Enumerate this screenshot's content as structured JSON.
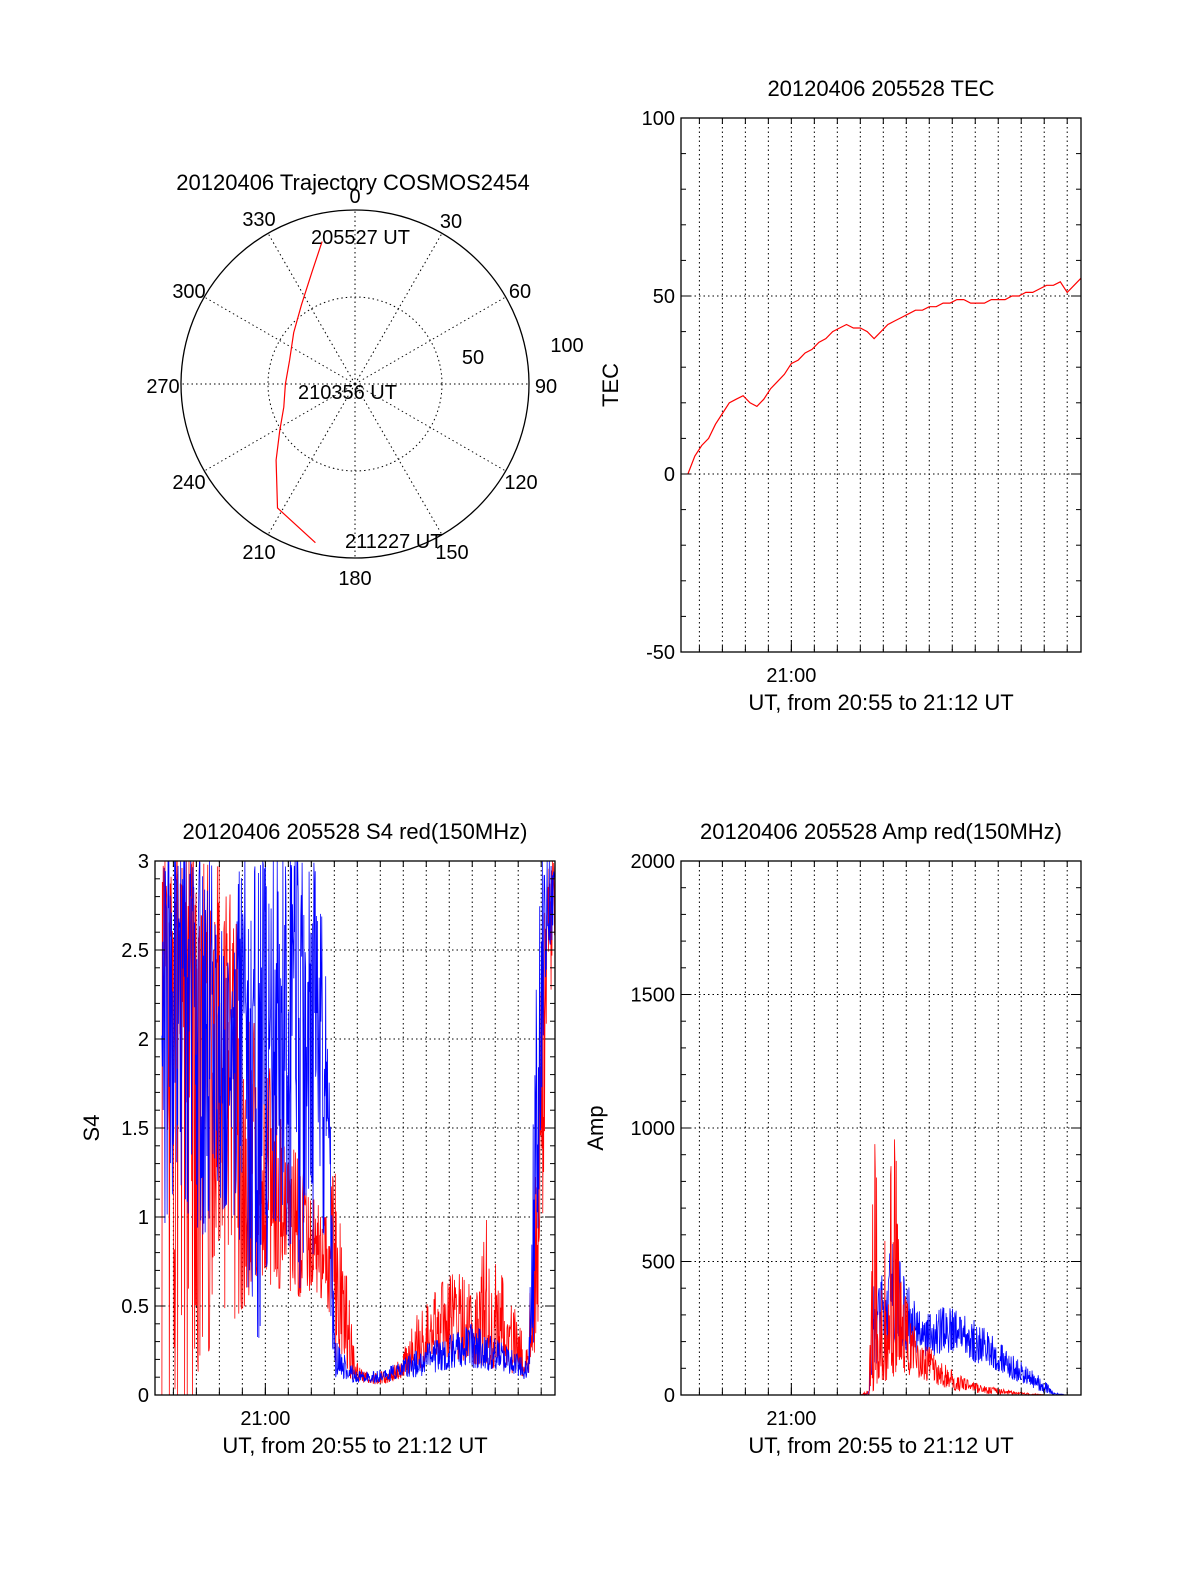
{
  "colors": {
    "red": "#ff0000",
    "blue": "#0000ff",
    "axis": "#000000"
  },
  "chart_data": [
    {
      "id": "trajectory",
      "type": "polar-trajectory",
      "title": "20120406 Trajectory COSMOS2454",
      "azimuth_labels": [
        "0",
        "30",
        "60",
        "90",
        "120",
        "150",
        "180",
        "210",
        "240",
        "270",
        "300",
        "330"
      ],
      "radial_labels": [
        "50",
        "100"
      ],
      "rlim": [
        0,
        100
      ],
      "grid": true,
      "series": [
        {
          "color": "#ff0000",
          "points": [
            {
              "az": 347,
              "r": 84
            },
            {
              "az": 339,
              "r": 69
            },
            {
              "az": 326,
              "r": 55
            },
            {
              "az": 310,
              "r": 46
            },
            {
              "az": 290,
              "r": 40
            },
            {
              "az": 270,
              "r": 40
            },
            {
              "az": 252,
              "r": 43
            },
            {
              "az": 238,
              "r": 51
            },
            {
              "az": 226,
              "r": 63
            },
            {
              "az": 212,
              "r": 84
            },
            {
              "az": 194,
              "r": 94
            }
          ]
        }
      ],
      "annotations": [
        "205527 UT",
        "210356 UT",
        "211227 UT"
      ]
    },
    {
      "id": "tec",
      "type": "line",
      "title": "20120406 205528 TEC",
      "xlabel": "UT, from 20:55 to 21:12 UT",
      "ylabel": "TEC",
      "xlim": [
        20.92,
        21.21
      ],
      "ylim": [
        -50,
        100
      ],
      "yticks": [
        -50,
        0,
        50,
        100
      ],
      "xticks": [
        {
          "x": 21.0,
          "label": "21:00"
        }
      ],
      "grid": true,
      "series": [
        {
          "color": "#ff0000",
          "x": [
            20.925,
            20.93,
            20.935,
            20.94,
            20.945,
            20.95,
            20.955,
            20.96,
            20.965,
            20.97,
            20.975,
            20.98,
            20.985,
            20.99,
            20.995,
            21.0,
            21.005,
            21.01,
            21.015,
            21.02,
            21.025,
            21.03,
            21.035,
            21.04,
            21.045,
            21.05,
            21.055,
            21.06,
            21.065,
            21.07,
            21.075,
            21.08,
            21.085,
            21.09,
            21.095,
            21.1,
            21.105,
            21.11,
            21.115,
            21.12,
            21.125,
            21.13,
            21.135,
            21.14,
            21.145,
            21.15,
            21.155,
            21.16,
            21.165,
            21.17,
            21.175,
            21.18,
            21.185,
            21.19,
            21.195,
            21.2,
            21.205,
            21.21
          ],
          "y": [
            0,
            5,
            8,
            10,
            14,
            17,
            20,
            21,
            22,
            20,
            19,
            21,
            24,
            26,
            28,
            31,
            32,
            34,
            35,
            37,
            38,
            40,
            41,
            42,
            41,
            41,
            40,
            38,
            40,
            42,
            43,
            44,
            45,
            46,
            46,
            47,
            47,
            48,
            48,
            49,
            49,
            48,
            48,
            48,
            49,
            49,
            49,
            50,
            50,
            51,
            51,
            52,
            53,
            53,
            54,
            51,
            53,
            55
          ]
        }
      ]
    },
    {
      "id": "s4",
      "type": "line",
      "title": "20120406 205528 S4 red(150MHz)",
      "xlabel": "UT, from 20:55 to 21:12 UT",
      "ylabel": "S4",
      "xlim": [
        20.92,
        21.21
      ],
      "ylim": [
        0,
        3
      ],
      "yticks": [
        0,
        0.5,
        1,
        1.5,
        2,
        2.5,
        3
      ],
      "ytick_labels": [
        "0",
        "0.5",
        "1",
        "1.5",
        "2",
        "2.5",
        "3"
      ],
      "xticks": [
        {
          "x": 21.0,
          "label": "21:00"
        }
      ],
      "grid": true,
      "series": [
        {
          "color": "#ff0000",
          "x": [
            20.925,
            20.935,
            20.945,
            20.955,
            20.965,
            20.975,
            20.985,
            20.995,
            21.005,
            21.015,
            21.025,
            21.035,
            21.045,
            21.05,
            21.055,
            21.06,
            21.065,
            21.07,
            21.08,
            21.09,
            21.1,
            21.11,
            21.12,
            21.13,
            21.14,
            21.15,
            21.16,
            21.17,
            21.18,
            21.19,
            21.195,
            21.2,
            21.205,
            21.21
          ],
          "y": [
            2.8,
            2.5,
            2.4,
            2.2,
            1.9,
            1.8,
            1.5,
            1.3,
            1.2,
            1.0,
            0.9,
            0.85,
            0.75,
            0.5,
            0.55,
            0.25,
            0.12,
            0.1,
            0.08,
            0.1,
            0.15,
            0.25,
            0.35,
            0.4,
            0.42,
            0.4,
            0.35,
            0.3,
            0.25,
            0.15,
            0.3,
            1.5,
            2.8,
            3.0
          ],
          "upper": [
            3.0,
            3.0,
            3.0,
            3.0,
            3.0,
            2.8,
            2.4,
            2.0,
            1.8,
            1.5,
            1.3,
            1.1,
            1.0,
            1.3,
            0.9,
            0.6,
            0.2,
            0.15,
            0.12,
            0.15,
            0.25,
            0.45,
            0.55,
            0.65,
            0.7,
            0.6,
            1.0,
            0.7,
            0.5,
            0.3,
            1.0,
            2.5,
            3.0,
            3.0
          ],
          "lower": [
            0,
            0,
            0,
            0,
            0.6,
            0.4,
            0.5,
            0.7,
            0.6,
            0.6,
            0.55,
            0.6,
            0.5,
            0.15,
            0.2,
            0.1,
            0.08,
            0.07,
            0.06,
            0.07,
            0.1,
            0.15,
            0.15,
            0.2,
            0.2,
            0.18,
            0.15,
            0.15,
            0.12,
            0.1,
            0.2,
            0.6,
            2.0,
            2.5
          ]
        },
        {
          "color": "#0000ff",
          "x": [
            20.925,
            20.935,
            20.945,
            20.955,
            20.965,
            20.975,
            20.985,
            20.995,
            21.005,
            21.015,
            21.025,
            21.035,
            21.045,
            21.05,
            21.055,
            21.06,
            21.065,
            21.07,
            21.08,
            21.09,
            21.1,
            21.11,
            21.12,
            21.13,
            21.14,
            21.15,
            21.16,
            21.17,
            21.18,
            21.19,
            21.195,
            21.2,
            21.205,
            21.21
          ],
          "y": [
            2.4,
            2.3,
            2.3,
            2.2,
            2.3,
            2.2,
            2.2,
            2.1,
            2.0,
            2.0,
            2.2,
            2.1,
            1.8,
            0.2,
            0.15,
            0.12,
            0.1,
            0.1,
            0.1,
            0.12,
            0.14,
            0.16,
            0.2,
            0.22,
            0.25,
            0.25,
            0.22,
            0.2,
            0.18,
            0.12,
            0.8,
            2.5,
            2.8,
            2.9
          ],
          "upper": [
            3.0,
            3.0,
            3.0,
            3.0,
            3.0,
            3.0,
            3.0,
            3.0,
            3.0,
            3.0,
            3.0,
            3.0,
            2.5,
            0.35,
            0.25,
            0.2,
            0.14,
            0.13,
            0.14,
            0.16,
            0.2,
            0.26,
            0.3,
            0.32,
            0.36,
            0.4,
            0.35,
            0.3,
            0.25,
            0.18,
            2.0,
            3.0,
            3.0,
            3.0
          ],
          "lower": [
            0.9,
            1.2,
            1.0,
            0.9,
            1.0,
            1.1,
            0.7,
            0.3,
            1.0,
            0.9,
            0.6,
            0.8,
            0.8,
            0.1,
            0.1,
            0.08,
            0.07,
            0.07,
            0.07,
            0.08,
            0.1,
            0.1,
            0.12,
            0.14,
            0.16,
            0.14,
            0.14,
            0.12,
            0.12,
            0.08,
            0.3,
            1.5,
            2.5,
            2.6
          ]
        }
      ]
    },
    {
      "id": "amp",
      "type": "line",
      "title": "20120406 205528 Amp red(150MHz)",
      "xlabel": "UT, from 20:55 to 21:12 UT",
      "ylabel": "Amp",
      "xlim": [
        20.92,
        21.21
      ],
      "ylim": [
        0,
        2000
      ],
      "yticks": [
        0,
        500,
        1000,
        1500,
        2000
      ],
      "xticks": [
        {
          "x": 21.0,
          "label": "21:00"
        }
      ],
      "grid": true,
      "series": [
        {
          "color": "#0000ff",
          "x": [
            20.925,
            20.99,
            21.05,
            21.056,
            21.06,
            21.065,
            21.07,
            21.075,
            21.08,
            21.09,
            21.1,
            21.11,
            21.12,
            21.13,
            21.14,
            21.15,
            21.16,
            21.17,
            21.18,
            21.185,
            21.19,
            21.2,
            21.21
          ],
          "y": [
            0,
            0,
            0,
            5,
            250,
            320,
            350,
            380,
            290,
            240,
            210,
            230,
            220,
            200,
            170,
            140,
            100,
            70,
            40,
            25,
            5,
            0,
            0
          ],
          "upper": [
            0,
            0,
            0,
            10,
            420,
            450,
            520,
            620,
            460,
            360,
            300,
            330,
            320,
            290,
            250,
            200,
            150,
            110,
            70,
            45,
            10,
            0,
            0
          ],
          "lower": [
            0,
            0,
            0,
            0,
            100,
            150,
            160,
            200,
            170,
            160,
            140,
            160,
            150,
            130,
            110,
            90,
            60,
            40,
            15,
            5,
            0,
            0,
            0
          ]
        },
        {
          "color": "#ff0000",
          "x": [
            20.925,
            20.99,
            21.05,
            21.056,
            21.06,
            21.065,
            21.07,
            21.075,
            21.08,
            21.09,
            21.1,
            21.11,
            21.12,
            21.13,
            21.14,
            21.15,
            21.16,
            21.17,
            21.18,
            21.185,
            21.19,
            21.2,
            21.21
          ],
          "y": [
            0,
            0,
            0,
            5,
            100,
            150,
            170,
            180,
            170,
            150,
            120,
            80,
            50,
            30,
            20,
            15,
            10,
            5,
            2,
            0,
            0,
            0,
            0
          ],
          "upper": [
            0,
            0,
            0,
            20,
            980,
            600,
            700,
            1050,
            420,
            240,
            180,
            120,
            80,
            50,
            35,
            25,
            15,
            8,
            4,
            0,
            0,
            0,
            0
          ],
          "lower": [
            0,
            0,
            0,
            0,
            20,
            40,
            60,
            70,
            80,
            70,
            50,
            30,
            15,
            10,
            5,
            3,
            2,
            0,
            0,
            0,
            0,
            0,
            0
          ]
        }
      ]
    }
  ]
}
